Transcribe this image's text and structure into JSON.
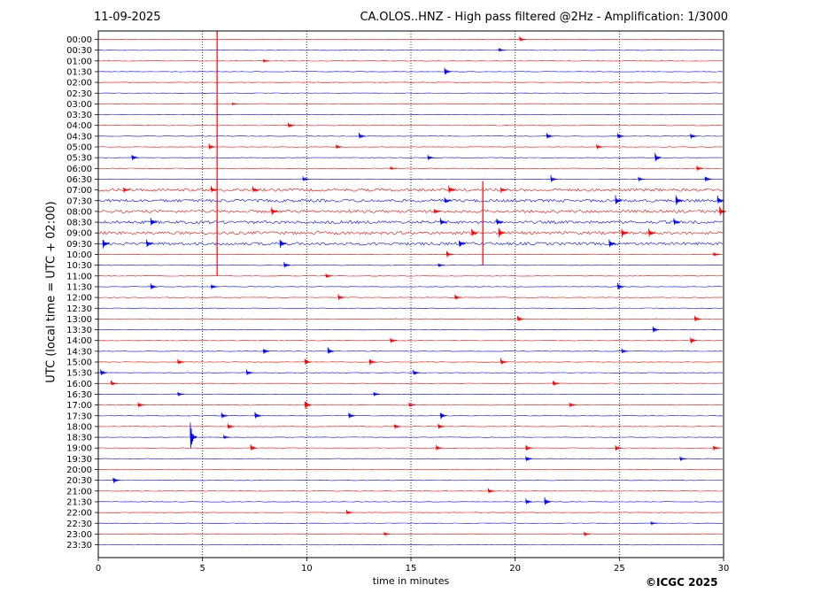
{
  "header": {
    "date": "11-09-2025",
    "title": "CA.OLOS..HNZ - High pass filtered @2Hz - Amplification: 1/3000"
  },
  "footer": {
    "copyright": "©ICGC 2025"
  },
  "colors": {
    "trace_a": "#ff0000",
    "trace_b": "#0000ff",
    "gridline": "#000000",
    "frame": "#000000"
  },
  "chart_data": {
    "type": "line",
    "title": "CA.OLOS..HNZ - High pass filtered @2Hz - Amplification: 1/3000",
    "xlabel": "time in minutes",
    "ylabel": "UTC (local time = UTC + 02:00)",
    "xlim": [
      0,
      30
    ],
    "xticks": [
      0,
      5,
      10,
      15,
      20,
      25,
      30
    ],
    "vertical_grid_at": [
      5,
      10,
      15,
      20,
      25
    ],
    "trace_color_order": [
      "red",
      "blue"
    ],
    "rows": [
      "00:00",
      "00:30",
      "01:00",
      "01:30",
      "02:00",
      "02:30",
      "03:00",
      "03:30",
      "04:00",
      "04:30",
      "05:00",
      "05:30",
      "06:00",
      "06:30",
      "07:00",
      "07:30",
      "08:00",
      "08:30",
      "09:00",
      "09:30",
      "10:00",
      "10:30",
      "11:00",
      "11:30",
      "12:00",
      "12:30",
      "13:00",
      "13:30",
      "14:00",
      "14:30",
      "15:00",
      "15:30",
      "16:00",
      "16:30",
      "17:00",
      "17:30",
      "18:00",
      "18:30",
      "19:00",
      "19:30",
      "20:00",
      "20:30",
      "21:00",
      "21:30",
      "22:00",
      "22:30",
      "23:00",
      "23:30"
    ],
    "noisy_rows": [
      "07:00",
      "07:30",
      "08:00",
      "08:30",
      "09:00",
      "09:30"
    ],
    "events": [
      {
        "row": "00:00",
        "t": 20.3,
        "amp": 0.5
      },
      {
        "row": "00:30",
        "t": 19.3,
        "amp": 0.4
      },
      {
        "row": "01:00",
        "t": 8.0,
        "amp": 0.3
      },
      {
        "row": "01:30",
        "t": 16.7,
        "amp": 0.8
      },
      {
        "row": "03:00",
        "t": 6.5,
        "amp": 0.2
      },
      {
        "row": "04:00",
        "t": 9.2,
        "amp": 0.5
      },
      {
        "row": "04:30",
        "t": 12.6,
        "amp": 0.6
      },
      {
        "row": "04:30",
        "t": 21.6,
        "amp": 0.6
      },
      {
        "row": "04:30",
        "t": 25.0,
        "amp": 0.6
      },
      {
        "row": "04:30",
        "t": 28.5,
        "amp": 0.6
      },
      {
        "row": "05:00",
        "t": 5.4,
        "amp": 0.6
      },
      {
        "row": "05:00",
        "t": 11.5,
        "amp": 0.4
      },
      {
        "row": "05:00",
        "t": 24.0,
        "amp": 0.5
      },
      {
        "row": "05:30",
        "t": 1.7,
        "amp": 0.6
      },
      {
        "row": "05:30",
        "t": 15.9,
        "amp": 0.5
      },
      {
        "row": "05:30",
        "t": 26.8,
        "amp": 0.9
      },
      {
        "row": "06:00",
        "t": 14.1,
        "amp": 0.3
      },
      {
        "row": "06:00",
        "t": 28.8,
        "amp": 0.5
      },
      {
        "row": "06:30",
        "t": 9.9,
        "amp": 0.5
      },
      {
        "row": "06:30",
        "t": 21.8,
        "amp": 0.7
      },
      {
        "row": "06:30",
        "t": 26.0,
        "amp": 0.4
      },
      {
        "row": "06:30",
        "t": 29.2,
        "amp": 0.6
      },
      {
        "row": "07:00",
        "t": 1.3,
        "amp": 0.5
      },
      {
        "row": "07:00",
        "t": 5.5,
        "amp": 0.6
      },
      {
        "row": "07:00",
        "t": 7.5,
        "amp": 0.6
      },
      {
        "row": "07:00",
        "t": 16.9,
        "amp": 0.9
      },
      {
        "row": "07:00",
        "t": 19.4,
        "amp": 0.6
      },
      {
        "row": "07:30",
        "t": 16.7,
        "amp": 0.6
      },
      {
        "row": "07:30",
        "t": 24.9,
        "amp": 0.9
      },
      {
        "row": "07:30",
        "t": 27.8,
        "amp": 0.9
      },
      {
        "row": "07:30",
        "t": 29.8,
        "amp": 0.9
      },
      {
        "row": "08:00",
        "t": 8.4,
        "amp": 0.7
      },
      {
        "row": "08:00",
        "t": 16.2,
        "amp": 0.6
      },
      {
        "row": "08:00",
        "t": 29.9,
        "amp": 0.9
      },
      {
        "row": "08:30",
        "t": 2.6,
        "amp": 0.8
      },
      {
        "row": "08:30",
        "t": 16.5,
        "amp": 0.7
      },
      {
        "row": "08:30",
        "t": 19.2,
        "amp": 0.7
      },
      {
        "row": "08:30",
        "t": 27.7,
        "amp": 0.7
      },
      {
        "row": "09:00",
        "t": 18.0,
        "amp": 0.9
      },
      {
        "row": "09:00",
        "t": 19.3,
        "amp": 1.0
      },
      {
        "row": "09:00",
        "t": 25.2,
        "amp": 1.0
      },
      {
        "row": "09:00",
        "t": 26.5,
        "amp": 0.9
      },
      {
        "row": "09:30",
        "t": 0.3,
        "amp": 1.0
      },
      {
        "row": "09:30",
        "t": 2.4,
        "amp": 0.8
      },
      {
        "row": "09:30",
        "t": 8.8,
        "amp": 0.9
      },
      {
        "row": "09:30",
        "t": 17.4,
        "amp": 0.8
      },
      {
        "row": "09:30",
        "t": 24.6,
        "amp": 0.8
      },
      {
        "row": "10:00",
        "t": 16.8,
        "amp": 0.6
      },
      {
        "row": "10:00",
        "t": 29.6,
        "amp": 0.4
      },
      {
        "row": "10:30",
        "t": 9.0,
        "amp": 0.6
      },
      {
        "row": "10:30",
        "t": 16.4,
        "amp": 0.4
      },
      {
        "row": "11:00",
        "t": 11.0,
        "amp": 0.5
      },
      {
        "row": "11:30",
        "t": 2.6,
        "amp": 0.6
      },
      {
        "row": "11:30",
        "t": 5.5,
        "amp": 0.5
      },
      {
        "row": "11:30",
        "t": 25.0,
        "amp": 0.8
      },
      {
        "row": "12:00",
        "t": 11.6,
        "amp": 0.6
      },
      {
        "row": "12:00",
        "t": 17.2,
        "amp": 0.5
      },
      {
        "row": "13:00",
        "t": 20.2,
        "amp": 0.6
      },
      {
        "row": "13:00",
        "t": 28.7,
        "amp": 0.6
      },
      {
        "row": "13:30",
        "t": 26.7,
        "amp": 0.6
      },
      {
        "row": "14:00",
        "t": 14.1,
        "amp": 0.5
      },
      {
        "row": "14:00",
        "t": 28.5,
        "amp": 0.7
      },
      {
        "row": "14:30",
        "t": 8.0,
        "amp": 0.6
      },
      {
        "row": "14:30",
        "t": 11.1,
        "amp": 0.7
      },
      {
        "row": "14:30",
        "t": 25.2,
        "amp": 0.5
      },
      {
        "row": "15:00",
        "t": 3.9,
        "amp": 0.6
      },
      {
        "row": "15:00",
        "t": 10.0,
        "amp": 0.6
      },
      {
        "row": "15:00",
        "t": 13.1,
        "amp": 0.7
      },
      {
        "row": "15:00",
        "t": 19.4,
        "amp": 0.7
      },
      {
        "row": "15:30",
        "t": 0.2,
        "amp": 0.7
      },
      {
        "row": "15:30",
        "t": 7.2,
        "amp": 0.6
      },
      {
        "row": "15:30",
        "t": 15.2,
        "amp": 0.6
      },
      {
        "row": "16:00",
        "t": 0.7,
        "amp": 0.5
      },
      {
        "row": "16:00",
        "t": 21.9,
        "amp": 0.6
      },
      {
        "row": "16:30",
        "t": 3.9,
        "amp": 0.4
      },
      {
        "row": "16:30",
        "t": 13.3,
        "amp": 0.5
      },
      {
        "row": "17:00",
        "t": 2.0,
        "amp": 0.5
      },
      {
        "row": "17:00",
        "t": 10.0,
        "amp": 0.9
      },
      {
        "row": "17:00",
        "t": 15.0,
        "amp": 0.5
      },
      {
        "row": "17:00",
        "t": 22.7,
        "amp": 0.5
      },
      {
        "row": "17:30",
        "t": 6.0,
        "amp": 0.6
      },
      {
        "row": "17:30",
        "t": 7.6,
        "amp": 0.7
      },
      {
        "row": "17:30",
        "t": 12.1,
        "amp": 0.7
      },
      {
        "row": "17:30",
        "t": 16.5,
        "amp": 0.7
      },
      {
        "row": "18:00",
        "t": 6.3,
        "amp": 0.6
      },
      {
        "row": "18:00",
        "t": 14.3,
        "amp": 0.5
      },
      {
        "row": "18:00",
        "t": 16.4,
        "amp": 0.5
      },
      {
        "row": "18:30",
        "t": 4.5,
        "amp": 2.5
      },
      {
        "row": "18:30",
        "t": 6.1,
        "amp": 0.4
      },
      {
        "row": "19:00",
        "t": 7.4,
        "amp": 0.6
      },
      {
        "row": "19:00",
        "t": 16.3,
        "amp": 0.5
      },
      {
        "row": "19:00",
        "t": 20.6,
        "amp": 0.6
      },
      {
        "row": "19:00",
        "t": 24.9,
        "amp": 0.6
      },
      {
        "row": "19:00",
        "t": 29.6,
        "amp": 0.5
      },
      {
        "row": "19:30",
        "t": 20.6,
        "amp": 0.6
      },
      {
        "row": "19:30",
        "t": 28.0,
        "amp": 0.4
      },
      {
        "row": "20:30",
        "t": 0.8,
        "amp": 0.6
      },
      {
        "row": "21:00",
        "t": 18.8,
        "amp": 0.5
      },
      {
        "row": "21:30",
        "t": 20.6,
        "amp": 0.6
      },
      {
        "row": "21:30",
        "t": 21.5,
        "amp": 0.8
      },
      {
        "row": "22:00",
        "t": 12.0,
        "amp": 0.5
      },
      {
        "row": "22:30",
        "t": 26.6,
        "amp": 0.3
      },
      {
        "row": "23:00",
        "t": 13.8,
        "amp": 0.4
      },
      {
        "row": "23:00",
        "t": 23.4,
        "amp": 0.4
      }
    ],
    "long_spikes": [
      {
        "from_row": "00:00",
        "to_row": "11:00",
        "t": 5.7
      },
      {
        "from_row": "07:00",
        "to_row": "10:30",
        "t": 18.45
      }
    ]
  }
}
